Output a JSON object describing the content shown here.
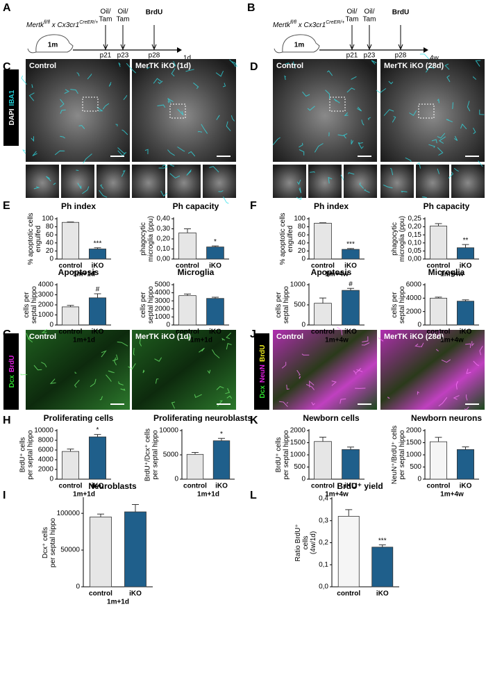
{
  "panel_letters": [
    "A",
    "B",
    "C",
    "D",
    "E",
    "F",
    "G",
    "J",
    "H",
    "K",
    "I",
    "L"
  ],
  "timelines": [
    {
      "genotype": {
        "gene1": "Mertk",
        "sup1": "fl/fl",
        "sep": " x ",
        "gene2": "Cx3cr1",
        "sup2": "CreER/+"
      },
      "age": "1m",
      "events": [
        {
          "label": [
            "Oil/",
            "Tam"
          ],
          "day": "p21"
        },
        {
          "label": [
            "Oil/",
            "Tam"
          ],
          "day": "p23"
        },
        {
          "label": [
            "BrdU"
          ],
          "day": "p28",
          "color": "#e020e0"
        }
      ],
      "end": "1d"
    },
    {
      "genotype": {
        "gene1": "Mertk",
        "sup1": "fl/fl",
        "sep": " x ",
        "gene2": "Cx3cr1",
        "sup2": "CreER/+"
      },
      "age": "1m",
      "events": [
        {
          "label": [
            "Oil/",
            "Tam"
          ],
          "day": "p21"
        },
        {
          "label": [
            "Oil/",
            "Tam"
          ],
          "day": "p23"
        },
        {
          "label": [
            "BrdU"
          ],
          "day": "p28",
          "color": "#e020e0"
        }
      ],
      "end": "4w"
    }
  ],
  "image_panels": [
    {
      "stain": [
        {
          "text": "DAPI",
          "color": "#ffffff"
        },
        {
          "text": "IBA1",
          "color": "#22d0d8"
        }
      ],
      "images": [
        "Control",
        "MerTK iKO (1d)"
      ]
    },
    {
      "images": [
        "Control",
        "MerTK iKO (28d)"
      ]
    },
    {
      "stain": [
        {
          "text": "Dcx",
          "color": "#30e030"
        },
        {
          "text": "BrdU",
          "color": "#e020e0"
        }
      ],
      "images": [
        "Control",
        "MerTK iKO (1d)"
      ]
    },
    {
      "stain": [
        {
          "text": "Dcx",
          "color": "#30e030"
        },
        {
          "text": "NeuN",
          "color": "#e020e0"
        },
        {
          "text": "BrdU",
          "color": "#f0f020"
        }
      ],
      "images": [
        "Control",
        "MerTK iKO (28d)"
      ]
    }
  ],
  "chart_data": [
    {
      "type": "bar",
      "title": "Ph index",
      "ylabel": [
        "% apoptotic cells",
        "engulfed"
      ],
      "categories": [
        "control",
        "iKO"
      ],
      "xsub": "1m+1d",
      "values": [
        91,
        25
      ],
      "errors": [
        1,
        3
      ],
      "colors": [
        "#e6e6e6",
        "#1f5f8b"
      ],
      "annotation": "***",
      "ylim": [
        0,
        100
      ],
      "yticks": [
        0,
        20,
        40,
        60,
        80,
        100
      ]
    },
    {
      "type": "bar",
      "title": "Ph capacity",
      "ylabel": [
        "phagocytic",
        "microglia (ppu)"
      ],
      "categories": [
        "control",
        "iKO"
      ],
      "values": [
        0.26,
        0.12
      ],
      "errors": [
        0.04,
        0.01
      ],
      "colors": [
        "#e6e6e6",
        "#1f5f8b"
      ],
      "annotation": "*",
      "ylim": [
        0,
        0.4
      ],
      "yticks": [
        {
          "value": 0,
          "label": "0,00"
        },
        {
          "value": 0.1,
          "label": "0,10"
        },
        {
          "value": 0.2,
          "label": "0,20"
        },
        {
          "value": 0.3,
          "label": "0,30"
        },
        {
          "value": 0.4,
          "label": "0,40"
        }
      ]
    },
    {
      "type": "bar",
      "title": "Apoptosis",
      "ylabel": [
        "cells per",
        "septal hippo"
      ],
      "categories": [
        "control",
        "iKO"
      ],
      "xsub": "1m+1d",
      "values": [
        1800,
        2700
      ],
      "errors": [
        150,
        400
      ],
      "colors": [
        "#e6e6e6",
        "#1f5f8b"
      ],
      "annotation": "#",
      "ylim": [
        0,
        4000
      ],
      "yticks": [
        0,
        1000,
        2000,
        3000,
        4000
      ]
    },
    {
      "type": "bar",
      "title": "Microglia",
      "ylabel": [
        "cells per",
        "septal hippo"
      ],
      "categories": [
        "control",
        "iKO"
      ],
      "xsub": "1m+1d",
      "values": [
        3650,
        3300
      ],
      "errors": [
        200,
        150
      ],
      "colors": [
        "#e6e6e6",
        "#1f5f8b"
      ],
      "ylim": [
        0,
        5000
      ],
      "yticks": [
        0,
        1000,
        2000,
        3000,
        4000,
        5000
      ]
    },
    {
      "type": "bar",
      "title": "Ph index",
      "ylabel": [
        "% apoptotic cells",
        "engulfed"
      ],
      "categories": [
        "control",
        "iKO"
      ],
      "xsub": "1m+4w",
      "values": [
        89,
        24
      ],
      "errors": [
        1,
        2
      ],
      "colors": [
        "#e6e6e6",
        "#1f5f8b"
      ],
      "annotation": "***",
      "ylim": [
        0,
        100
      ],
      "yticks": [
        0,
        20,
        40,
        60,
        80,
        100
      ]
    },
    {
      "type": "bar",
      "title": "Ph capacity",
      "ylabel": [
        "phagocytic",
        "microglia (ppu)"
      ],
      "categories": [
        "control",
        "iKO"
      ],
      "xsub": "1m+4w",
      "values": [
        0.205,
        0.07
      ],
      "errors": [
        0.015,
        0.02
      ],
      "colors": [
        "#e6e6e6",
        "#1f5f8b"
      ],
      "annotation": "**",
      "ylim": [
        0,
        0.25
      ],
      "yticks": [
        {
          "value": 0,
          "label": "0,00"
        },
        {
          "value": 0.05,
          "label": "0,05"
        },
        {
          "value": 0.1,
          "label": "0,10"
        },
        {
          "value": 0.15,
          "label": "0,15"
        },
        {
          "value": 0.2,
          "label": "0,20"
        },
        {
          "value": 0.25,
          "label": "0,25"
        }
      ]
    },
    {
      "type": "bar",
      "title": "Apoptosis",
      "ylabel": [
        "cells per",
        "septal hippo"
      ],
      "categories": [
        "control",
        "iKO"
      ],
      "xsub": "1m+4w",
      "values": [
        540,
        860
      ],
      "errors": [
        130,
        50
      ],
      "colors": [
        "#e6e6e6",
        "#1f5f8b"
      ],
      "annotation": "#",
      "ylim": [
        0,
        1000
      ],
      "yticks": [
        0,
        500,
        1000
      ]
    },
    {
      "type": "bar",
      "title": "Microglia",
      "ylabel": [
        "cells per",
        "septal hippo"
      ],
      "categories": [
        "control",
        "iKO"
      ],
      "xsub": "1m+4w",
      "values": [
        4000,
        3550
      ],
      "errors": [
        150,
        200
      ],
      "colors": [
        "#e6e6e6",
        "#1f5f8b"
      ],
      "ylim": [
        0,
        6000
      ],
      "yticks": [
        0,
        2000,
        4000,
        6000
      ]
    },
    {
      "type": "bar",
      "title": "Proliferating cells",
      "ylabel": [
        "BrdU⁺ cells",
        "per septal hippo"
      ],
      "categories": [
        "control",
        "iKO"
      ],
      "xsub": "1m+1d",
      "values": [
        5700,
        8700
      ],
      "errors": [
        500,
        500
      ],
      "colors": [
        "#e6e6e6",
        "#1f5f8b"
      ],
      "annotation": "*",
      "ylim": [
        0,
        10000
      ],
      "yticks": [
        0,
        2000,
        4000,
        6000,
        8000,
        10000
      ]
    },
    {
      "type": "bar",
      "title": "Proliferating neuroblasts",
      "ylabel": [
        "BrdU⁺/Dcx⁺ cells",
        "per septal hippo"
      ],
      "categories": [
        "control",
        "iKO"
      ],
      "xsub": "1m+1d",
      "values": [
        5100,
        7900
      ],
      "errors": [
        400,
        500
      ],
      "colors": [
        "#e6e6e6",
        "#1f5f8b"
      ],
      "annotation": "*",
      "ylim": [
        0,
        10000
      ],
      "yticks": [
        0,
        5000,
        10000
      ]
    },
    {
      "type": "bar",
      "title": "Newborn cells",
      "ylabel": [
        "BrdU⁺ cells",
        "per septal  hippo"
      ],
      "categories": [
        "control",
        "iKO"
      ],
      "xsub": "1m+4w",
      "values": [
        1550,
        1220
      ],
      "errors": [
        180,
        100
      ],
      "colors": [
        "#e6e6e6",
        "#1f5f8b"
      ],
      "ylim": [
        0,
        2000
      ],
      "yticks": [
        0,
        500,
        1000,
        1500,
        2000
      ]
    },
    {
      "type": "bar",
      "title": "Newborn neurons",
      "ylabel": [
        "NeuN⁺/BrdU⁺ cells",
        "per septal hippo"
      ],
      "categories": [
        "control",
        "iKO"
      ],
      "xsub": "1m+4w",
      "values": [
        1540,
        1220
      ],
      "errors": [
        180,
        110
      ],
      "colors": [
        "#f5f5f5",
        "#1f5f8b"
      ],
      "ylim": [
        0,
        2000
      ],
      "yticks": [
        0,
        500,
        1000,
        1500,
        2000
      ]
    },
    {
      "type": "bar",
      "title": "Neuroblasts",
      "ylabel": [
        "Dcx⁺ cells",
        "per septal hippo"
      ],
      "categories": [
        "control",
        "iKO"
      ],
      "xsub": "1m+1d",
      "values": [
        95000,
        102000
      ],
      "errors": [
        4000,
        10000
      ],
      "colors": [
        "#e6e6e6",
        "#1f5f8b"
      ],
      "ylim": [
        0,
        120000
      ],
      "yticks": [
        0,
        50000,
        100000
      ]
    },
    {
      "type": "bar",
      "title": "BrdU⁺ yield",
      "ylabel": [
        "Ratio BrdU⁺",
        "cells",
        "(4w/1d)"
      ],
      "categories": [
        "control",
        "iKO"
      ],
      "values": [
        0.32,
        0.18
      ],
      "errors": [
        0.03,
        0.01
      ],
      "colors": [
        "#f5f5f5",
        "#1f5f8b"
      ],
      "annotation": "***",
      "ylim": [
        0,
        0.4
      ],
      "yticks": [
        {
          "value": 0,
          "label": "0,0"
        },
        {
          "value": 0.1,
          "label": "0,1"
        },
        {
          "value": 0.2,
          "label": "0,2"
        },
        {
          "value": 0.3,
          "label": "0,3"
        },
        {
          "value": 0.4,
          "label": "0,4"
        }
      ]
    }
  ]
}
